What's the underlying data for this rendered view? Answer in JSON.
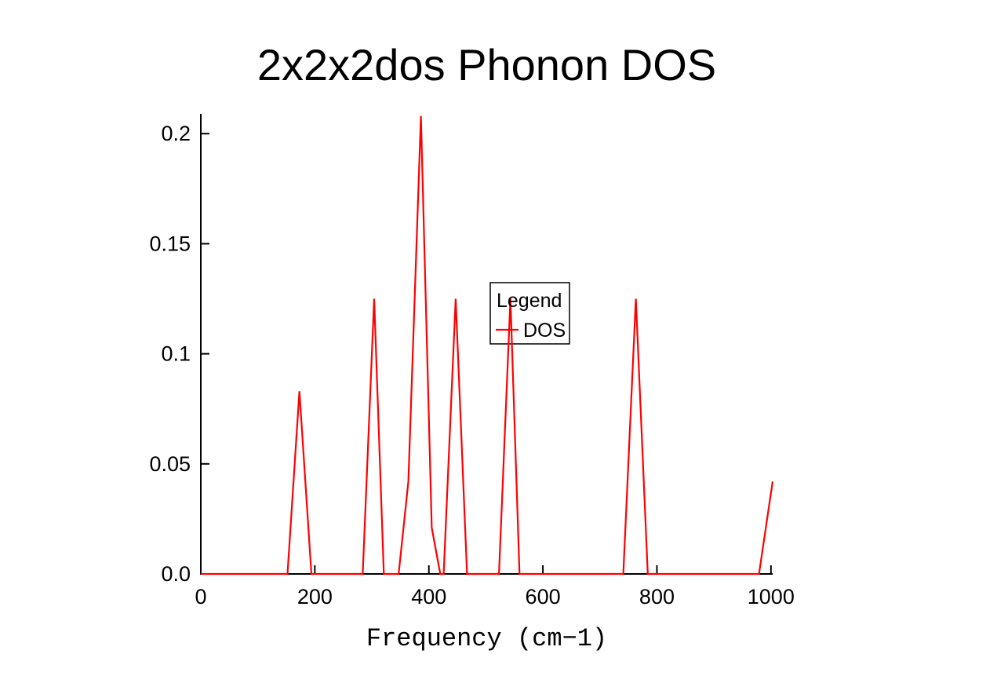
{
  "page": {
    "background": "#ffffff"
  },
  "chart_data": {
    "type": "line",
    "title": "2x2x2dos Phonon DOS",
    "xlabel": "Frequency (cm−1)",
    "ylabel": "",
    "xlim": [
      0,
      1003
    ],
    "ylim": [
      0,
      0.209
    ],
    "grid": false,
    "axis_color": "#000000",
    "x_ticks": {
      "values": [
        0,
        200,
        400,
        600,
        800,
        1000
      ],
      "labels": [
        "0",
        "200",
        "400",
        "600",
        "800",
        "1000"
      ]
    },
    "y_ticks": {
      "values": [
        0,
        0.05,
        0.1,
        0.15,
        0.2
      ],
      "labels": [
        "0.0",
        "0.05",
        "0.1",
        "0.15",
        "0.2"
      ]
    },
    "series": [
      {
        "name": "DOS",
        "color": "#ff0000",
        "points": [
          [
            0,
            0
          ],
          [
            152,
            0
          ],
          [
            173,
            0.083
          ],
          [
            194,
            0
          ],
          [
            284,
            0
          ],
          [
            304,
            0.125
          ],
          [
            321,
            0
          ],
          [
            347,
            0
          ],
          [
            364,
            0.042
          ],
          [
            386,
            0.208
          ],
          [
            405,
            0.021
          ],
          [
            420,
            0
          ],
          [
            426,
            0
          ],
          [
            447,
            0.125
          ],
          [
            467,
            0
          ],
          [
            523,
            0
          ],
          [
            543,
            0.125
          ],
          [
            559,
            0
          ],
          [
            741,
            0
          ],
          [
            763,
            0.125
          ],
          [
            784,
            0
          ],
          [
            979,
            0
          ],
          [
            1003,
            0.042
          ]
        ]
      }
    ],
    "legend": {
      "title": "Legend",
      "position": "inside-center",
      "entries": [
        {
          "label": "DOS",
          "color": "#ff0000"
        }
      ]
    }
  }
}
